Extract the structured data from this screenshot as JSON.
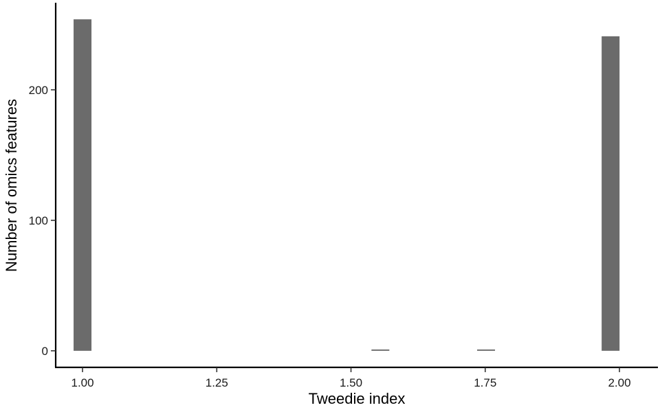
{
  "chart_data": {
    "type": "bar",
    "title": "",
    "xlabel": "Tweedie index",
    "ylabel": "Number of omics features",
    "bin_width": 0.0333,
    "x": [
      1.0,
      1.5548,
      1.7516,
      1.9835
    ],
    "values": [
      254,
      1,
      1,
      241
    ],
    "xlim": [
      0.95,
      2.0717
    ],
    "ylim": [
      -12.7,
      266.7
    ],
    "x_ticks": [
      1.0,
      1.25,
      1.5,
      1.75,
      2.0
    ],
    "x_tick_labels": [
      "1.00",
      "1.25",
      "1.50",
      "1.75",
      "2.00"
    ],
    "y_ticks": [
      0,
      100,
      200
    ],
    "y_tick_labels": [
      "0",
      "100",
      "200"
    ],
    "bar_color": "#6b6b6b",
    "grid": false,
    "legend": "none"
  }
}
